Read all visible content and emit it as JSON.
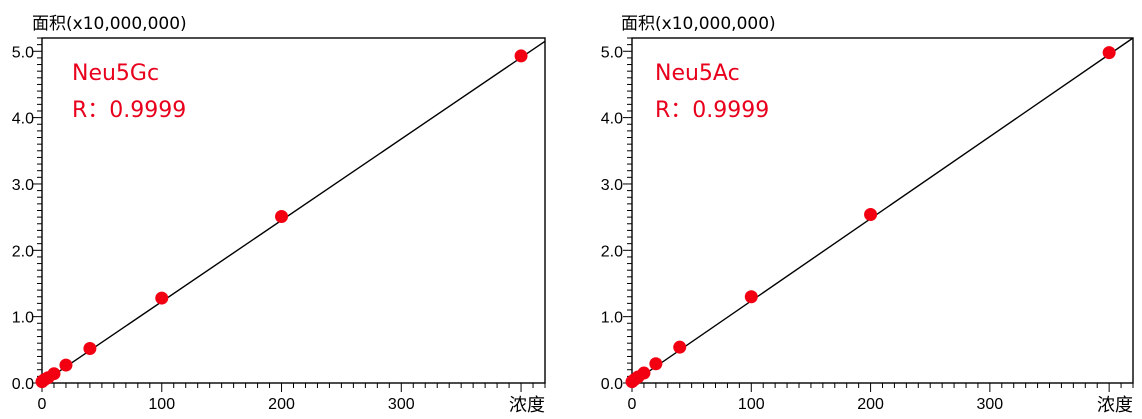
{
  "chart_data": [
    {
      "type": "scatter",
      "ylabel": "面积(x10,000,000)",
      "xlabel": "浓度",
      "annotation_compound": "Neu5Gc",
      "annotation_r": "R：0.9999",
      "xlim": [
        0,
        420
      ],
      "ylim": [
        0,
        5.2
      ],
      "x_ticks": [
        "0",
        "100",
        "200",
        "300"
      ],
      "y_ticks": [
        "0.0",
        "1.0",
        "2.0",
        "3.0",
        "4.0",
        "5.0"
      ],
      "fit_line": {
        "x": [
          0,
          420
        ],
        "y": [
          0.0,
          5.15
        ]
      },
      "series": [
        {
          "points": [
            {
              "x": 0,
              "y": 0.02
            },
            {
              "x": 2,
              "y": 0.05
            },
            {
              "x": 5,
              "y": 0.08
            },
            {
              "x": 10,
              "y": 0.14
            },
            {
              "x": 20,
              "y": 0.27
            },
            {
              "x": 40,
              "y": 0.52
            },
            {
              "x": 100,
              "y": 1.28
            },
            {
              "x": 200,
              "y": 2.51
            },
            {
              "x": 400,
              "y": 4.93
            }
          ]
        }
      ]
    },
    {
      "type": "scatter",
      "ylabel": "面积(x10,000,000)",
      "xlabel": "浓度",
      "annotation_compound": "Neu5Ac",
      "annotation_r": "R：0.9999",
      "xlim": [
        0,
        420
      ],
      "ylim": [
        0,
        5.2
      ],
      "x_ticks": [
        "0",
        "100",
        "200",
        "300"
      ],
      "y_ticks": [
        "0.0",
        "1.0",
        "2.0",
        "3.0",
        "4.0",
        "5.0"
      ],
      "fit_line": {
        "x": [
          0,
          420
        ],
        "y": [
          0.0,
          5.2
        ]
      },
      "series": [
        {
          "points": [
            {
              "x": 0,
              "y": 0.02
            },
            {
              "x": 2,
              "y": 0.05
            },
            {
              "x": 5,
              "y": 0.09
            },
            {
              "x": 10,
              "y": 0.15
            },
            {
              "x": 20,
              "y": 0.29
            },
            {
              "x": 40,
              "y": 0.54
            },
            {
              "x": 100,
              "y": 1.3
            },
            {
              "x": 200,
              "y": 2.54
            },
            {
              "x": 400,
              "y": 4.98
            }
          ]
        }
      ]
    }
  ]
}
